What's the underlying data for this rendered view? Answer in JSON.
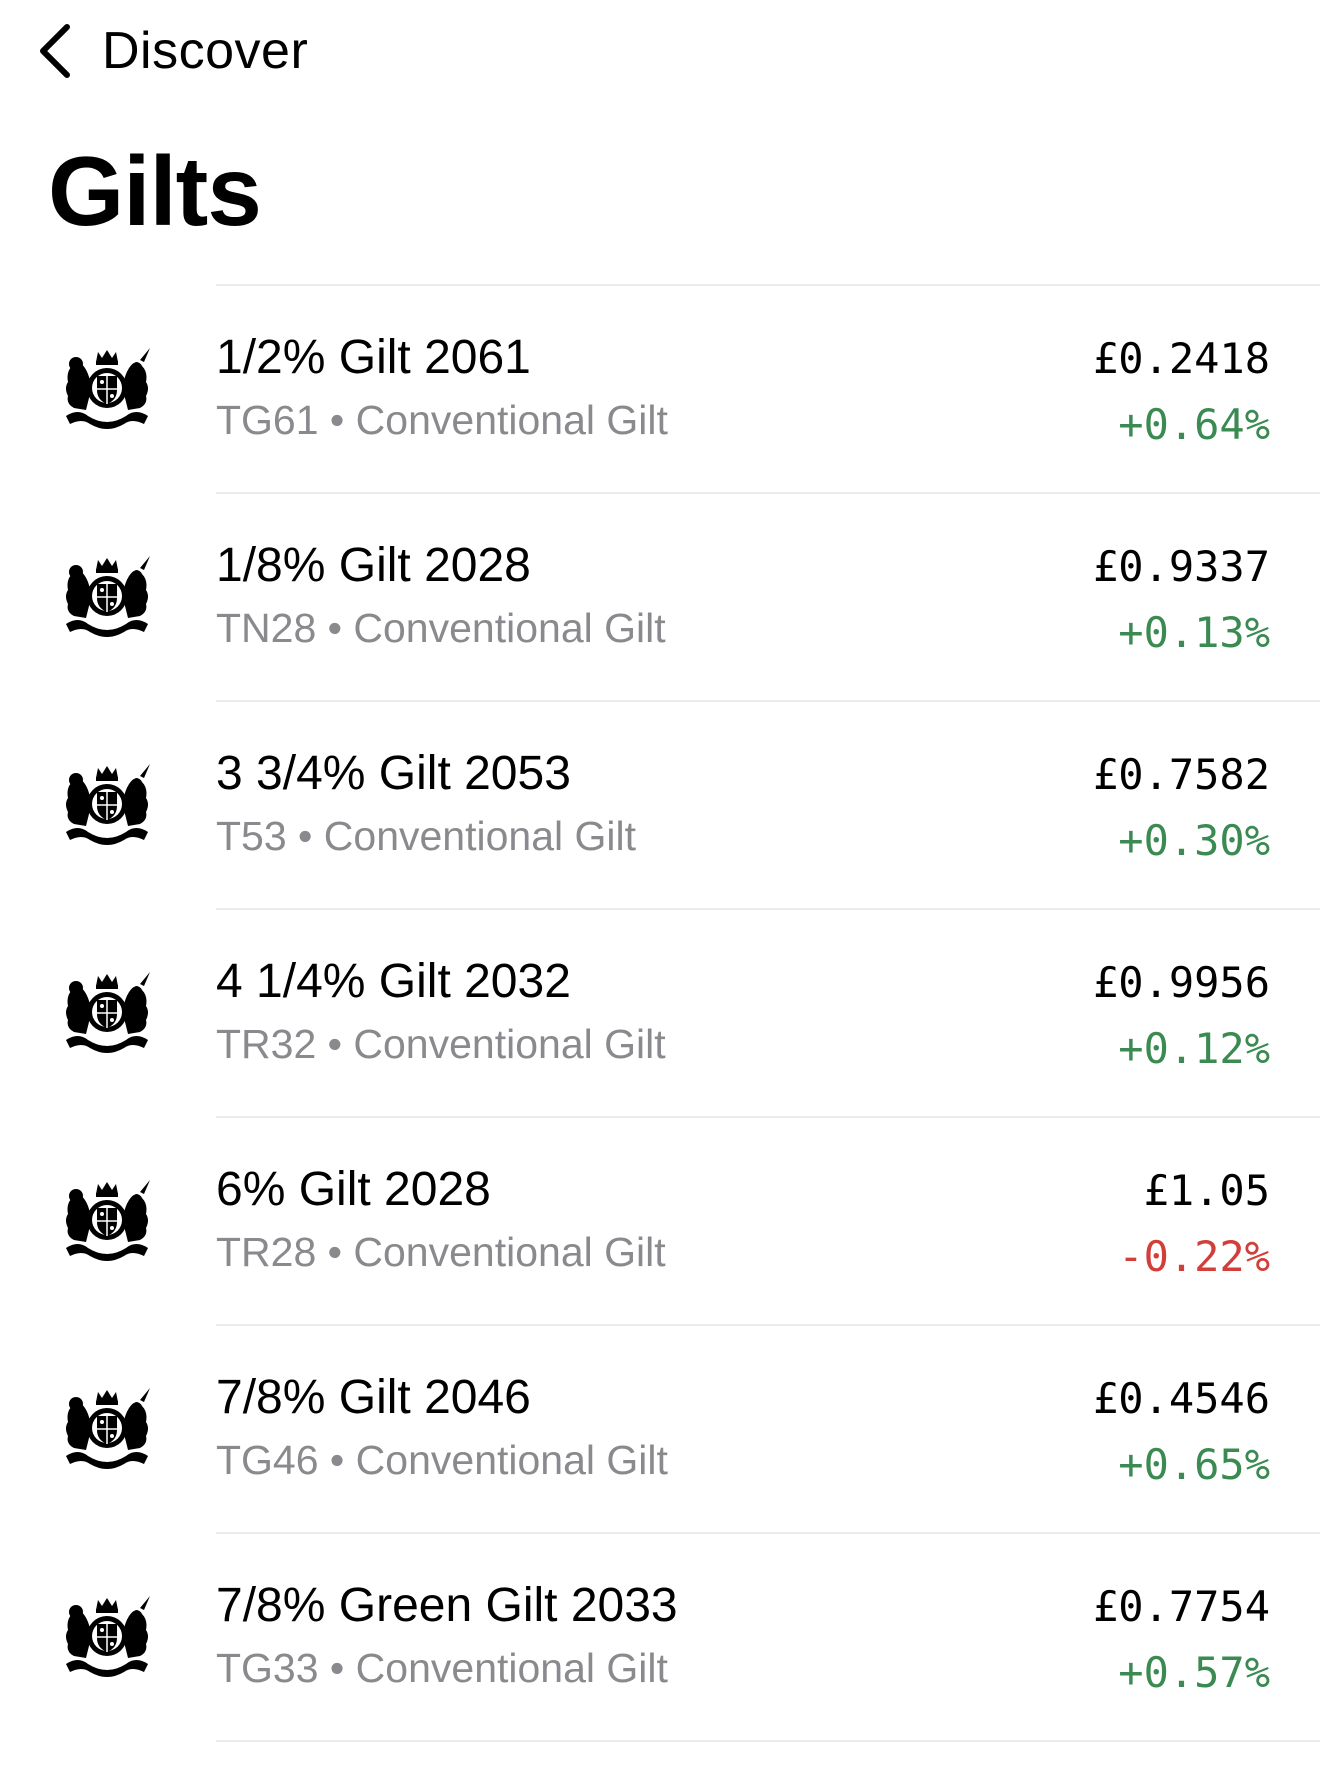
{
  "nav": {
    "back_label": "Discover",
    "back_icon": "chevron-left-icon"
  },
  "page": {
    "title": "Gilts"
  },
  "colors": {
    "positive": "#3a8a52",
    "negative": "#d23f3a",
    "secondary_text": "#8a8a8e",
    "divider": "#ececec"
  },
  "gilts": [
    {
      "name": "1/2% Gilt 2061",
      "ticker": "TG61",
      "type": "Conventional Gilt",
      "price": "£0.2418",
      "change": "+0.64%",
      "direction": "up",
      "icon": "royal-coat-of-arms-icon"
    },
    {
      "name": "1/8% Gilt 2028",
      "ticker": "TN28",
      "type": "Conventional Gilt",
      "price": "£0.9337",
      "change": "+0.13%",
      "direction": "up",
      "icon": "royal-coat-of-arms-icon"
    },
    {
      "name": "3 3/4% Gilt 2053",
      "ticker": "T53",
      "type": "Conventional Gilt",
      "price": "£0.7582",
      "change": "+0.30%",
      "direction": "up",
      "icon": "royal-coat-of-arms-icon"
    },
    {
      "name": "4 1/4% Gilt 2032",
      "ticker": "TR32",
      "type": "Conventional Gilt",
      "price": "£0.9956",
      "change": "+0.12%",
      "direction": "up",
      "icon": "royal-coat-of-arms-icon"
    },
    {
      "name": "6% Gilt 2028",
      "ticker": "TR28",
      "type": "Conventional Gilt",
      "price": "£1.05",
      "change": "-0.22%",
      "direction": "down",
      "icon": "royal-coat-of-arms-icon"
    },
    {
      "name": "7/8% Gilt 2046",
      "ticker": "TG46",
      "type": "Conventional Gilt",
      "price": "£0.4546",
      "change": "+0.65%",
      "direction": "up",
      "icon": "royal-coat-of-arms-icon"
    },
    {
      "name": "7/8% Green Gilt 2033",
      "ticker": "TG33",
      "type": "Conventional Gilt",
      "price": "£0.7754",
      "change": "+0.57%",
      "direction": "up",
      "icon": "royal-coat-of-arms-icon"
    }
  ]
}
